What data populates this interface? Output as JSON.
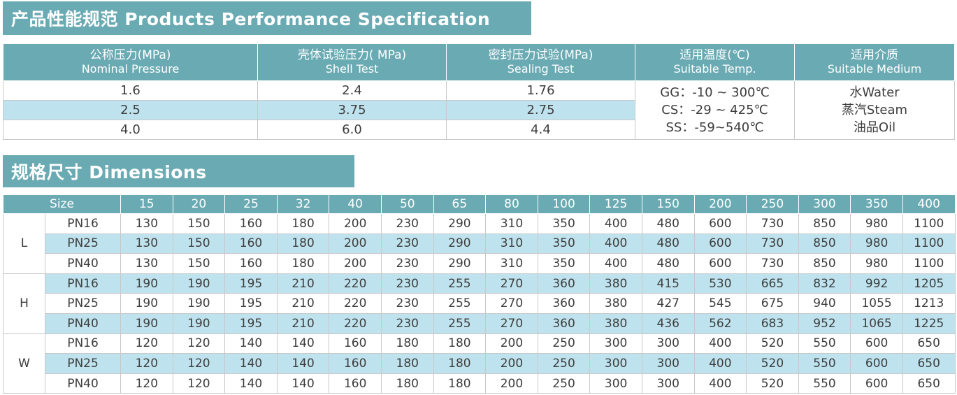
{
  "performance": {
    "title": "产品性能规范 Products Performance Specification",
    "headers": [
      {
        "cn": "公称压力(MPa)",
        "en": "Nominal Pressure"
      },
      {
        "cn": "壳体试验压力( MPa)",
        "en": "Shell Test"
      },
      {
        "cn": "密封压力试验(MPa)",
        "en": "Sealing Test"
      },
      {
        "cn": "适用温度(℃)",
        "en": "Suitable Temp."
      },
      {
        "cn": "适用介质",
        "en": "Suitable Medium"
      }
    ],
    "rows": [
      {
        "nominal": "1.6",
        "shell": "2.4",
        "sealing": "1.76"
      },
      {
        "nominal": "2.5",
        "shell": "3.75",
        "sealing": "2.75"
      },
      {
        "nominal": "4.0",
        "shell": "6.0",
        "sealing": "4.4"
      }
    ],
    "temps": [
      "GG：-10 ~ 300℃",
      "CS：-29 ~ 425℃",
      "SS：-59~540℃"
    ],
    "media": [
      "水Water",
      "蒸汽Steam",
      "油品Oil"
    ]
  },
  "dimensions": {
    "title": "规格尺寸 Dimensions",
    "size_label": "Size",
    "sizes": [
      "15",
      "20",
      "25",
      "32",
      "40",
      "50",
      "65",
      "80",
      "100",
      "125",
      "150",
      "200",
      "250",
      "300",
      "350",
      "400"
    ],
    "groups": [
      {
        "label": "L",
        "rows": [
          {
            "pn": "PN16",
            "values": [
              "130",
              "150",
              "160",
              "180",
              "200",
              "230",
              "290",
              "310",
              "350",
              "400",
              "480",
              "600",
              "730",
              "850",
              "980",
              "1100"
            ]
          },
          {
            "pn": "PN25",
            "values": [
              "130",
              "150",
              "160",
              "180",
              "200",
              "230",
              "290",
              "310",
              "350",
              "400",
              "480",
              "600",
              "730",
              "850",
              "980",
              "1100"
            ]
          },
          {
            "pn": "PN40",
            "values": [
              "130",
              "150",
              "160",
              "180",
              "200",
              "230",
              "290",
              "310",
              "350",
              "400",
              "480",
              "600",
              "730",
              "850",
              "980",
              "1100"
            ]
          }
        ]
      },
      {
        "label": "H",
        "rows": [
          {
            "pn": "PN16",
            "values": [
              "190",
              "190",
              "195",
              "210",
              "220",
              "230",
              "255",
              "270",
              "360",
              "380",
              "415",
              "530",
              "665",
              "832",
              "992",
              "1205"
            ]
          },
          {
            "pn": "PN25",
            "values": [
              "190",
              "190",
              "195",
              "210",
              "220",
              "230",
              "255",
              "270",
              "360",
              "380",
              "427",
              "545",
              "675",
              "940",
              "1055",
              "1213"
            ]
          },
          {
            "pn": "PN40",
            "values": [
              "190",
              "190",
              "195",
              "210",
              "220",
              "230",
              "255",
              "270",
              "360",
              "380",
              "436",
              "562",
              "683",
              "952",
              "1065",
              "1225"
            ]
          }
        ]
      },
      {
        "label": "W",
        "rows": [
          {
            "pn": "PN16",
            "values": [
              "120",
              "120",
              "140",
              "140",
              "160",
              "180",
              "180",
              "200",
              "250",
              "300",
              "300",
              "400",
              "520",
              "550",
              "600",
              "650"
            ]
          },
          {
            "pn": "PN25",
            "values": [
              "120",
              "120",
              "140",
              "140",
              "160",
              "180",
              "180",
              "200",
              "250",
              "300",
              "300",
              "400",
              "520",
              "550",
              "600",
              "650"
            ]
          },
          {
            "pn": "PN40",
            "values": [
              "120",
              "120",
              "140",
              "140",
              "160",
              "180",
              "180",
              "200",
              "250",
              "300",
              "300",
              "400",
              "520",
              "550",
              "600",
              "650"
            ]
          }
        ]
      }
    ]
  },
  "colors": {
    "header": "#6aaab3",
    "band": "#bfe3ee"
  }
}
